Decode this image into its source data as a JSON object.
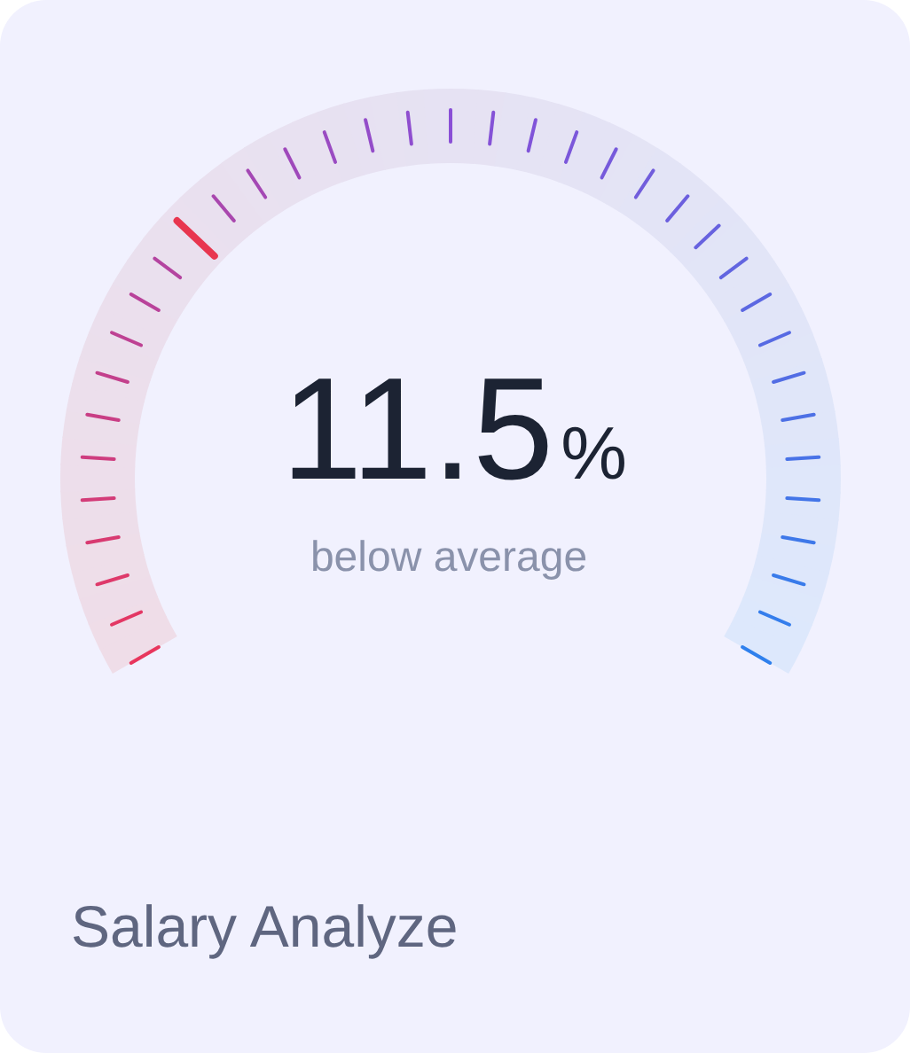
{
  "chart_data": {
    "type": "other",
    "title": "Salary Analyze",
    "categories": [
      null
    ],
    "values": [
      11.5
    ],
    "value_labels": [
      "11.5%"
    ],
    "annotations": [
      "below average"
    ]
  }
}
